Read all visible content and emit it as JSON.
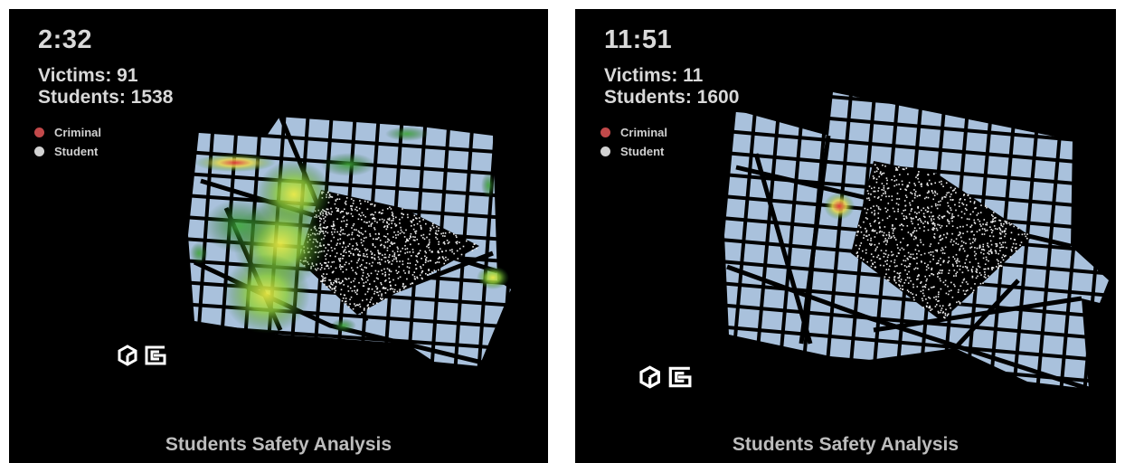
{
  "panels": [
    {
      "time": "2:32",
      "victims": "Victims: 91",
      "students": "Students: 1538",
      "legend": {
        "criminal": "Criminal",
        "student": "Student"
      },
      "footer": "Students Safety Analysis"
    },
    {
      "time": "11:51",
      "victims": "Victims: 11",
      "students": "Students: 1600",
      "legend": {
        "criminal": "Criminal",
        "student": "Student"
      },
      "footer": "Students Safety Analysis"
    }
  ],
  "colors": {
    "background": "#000000",
    "street_block": "#a9c1dc",
    "text": "#d9d9d9",
    "criminal_dot": "#c2494a",
    "student_dot": "#d2d2d2",
    "heat_low": "#2e8b2e",
    "heat_mid": "#d6e84a",
    "heat_high": "#e23a3a"
  },
  "icons": [
    "cube-logo-icon",
    "g-logo-icon"
  ]
}
